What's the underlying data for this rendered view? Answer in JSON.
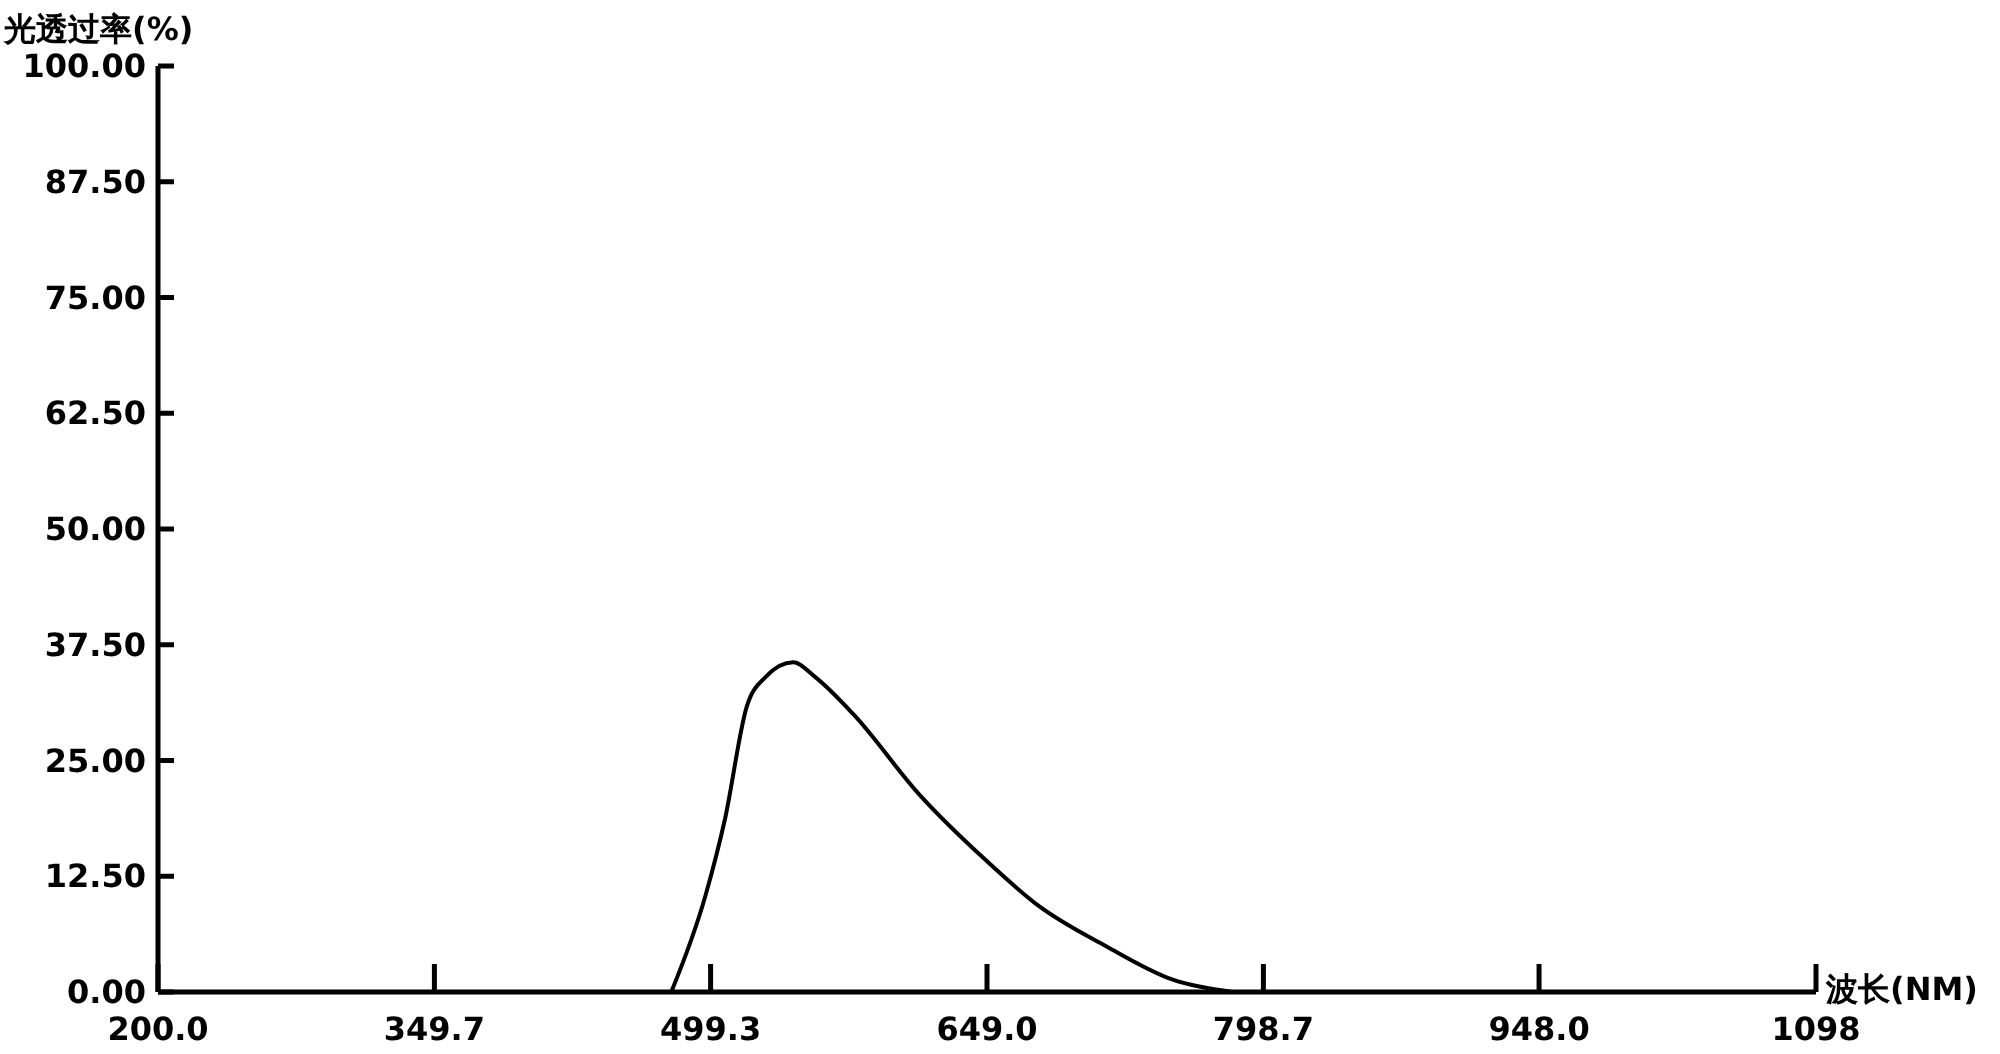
{
  "chart_data": {
    "type": "line",
    "xlabel": "波长(NM)",
    "ylabel": "光透过率(%)",
    "x": [
      478,
      496.5,
      507,
      519,
      529,
      544,
      556,
      576.6,
      612,
      648,
      677,
      713,
      750,
      782
    ],
    "series": [
      {
        "color": "#000000",
        "values": [
          0,
          10.4,
          18.6,
          30.9,
          34,
          35.6,
          34,
          30,
          21.4,
          14.3,
          9.3,
          5,
          1.3,
          0
        ]
      }
    ],
    "xlim": [
      200,
      1098
    ],
    "xticks": [
      {
        "value": 200,
        "label": "200.0"
      },
      349.7,
      499.3,
      {
        "value": 649,
        "label": "649.0"
      },
      798.7,
      {
        "value": 948,
        "label": "948.0"
      },
      1098
    ],
    "ylim": [
      0,
      100
    ],
    "yticks": [
      {
        "value": 0,
        "label": "0.00"
      },
      {
        "value": 12.5,
        "label": "12.50"
      },
      {
        "value": 25,
        "label": "25.00"
      },
      {
        "value": 37.5,
        "label": "37.50"
      },
      {
        "value": 50,
        "label": "50.00"
      },
      {
        "value": 62.5,
        "label": "62.50"
      },
      {
        "value": 75,
        "label": "75.00"
      },
      {
        "value": 87.5,
        "label": "87.50"
      },
      {
        "value": 100,
        "label": "100.00"
      }
    ],
    "grid": false,
    "marker": "none",
    "line_style": "solid"
  }
}
